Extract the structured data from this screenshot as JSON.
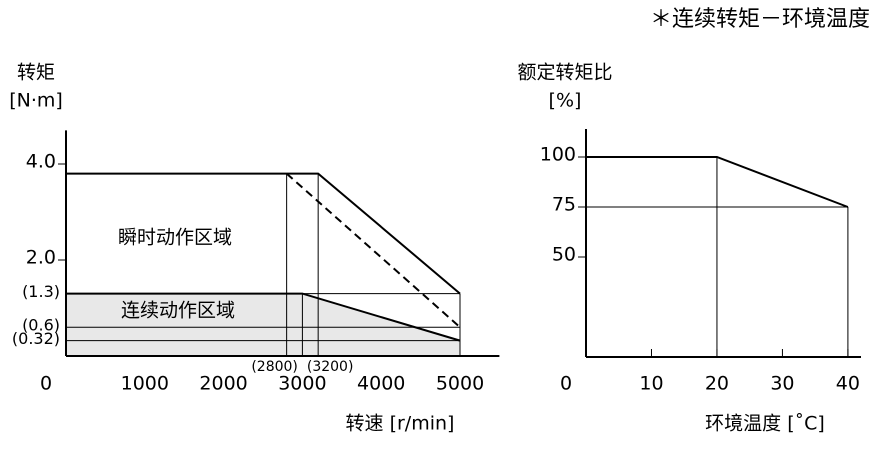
{
  "header": {
    "title": "＊连续转矩－环境温度"
  },
  "chart_data": [
    {
      "type": "line",
      "y_label": [
        "转矩",
        "[N·m]"
      ],
      "x_label": "转速 [r/min]",
      "xlim": [
        0,
        5500
      ],
      "ylim": [
        0,
        4.7
      ],
      "xticks": [
        0,
        1000,
        2000,
        3000,
        4000,
        5000
      ],
      "yticks": [
        {
          "value": 2,
          "label": "2.0"
        },
        {
          "value": 4,
          "label": "4.0"
        }
      ],
      "yrefs": [
        {
          "value": 1.3,
          "label": "(1.3)"
        },
        {
          "value": 0.6,
          "label": "(0.6)"
        },
        {
          "value": 0.32,
          "label": "(0.32)"
        }
      ],
      "xrefs": [
        {
          "value": 2800,
          "label": "(2800)"
        },
        {
          "value": 3200,
          "label": "(3200)"
        }
      ],
      "series": [
        {
          "name": "瞬时动作区域",
          "color": "#000000",
          "x": [
            0,
            3200,
            5000
          ],
          "values": [
            3.8,
            3.8,
            1.3
          ]
        },
        {
          "color": "#000000",
          "dash": true,
          "x": [
            2800,
            5000
          ],
          "values": [
            3.8,
            0.6
          ]
        },
        {
          "name": "连续动作区域",
          "color": "#000000",
          "fill": "#e8e8e8",
          "x": [
            0,
            3000,
            5000
          ],
          "values": [
            1.3,
            1.3,
            0.32
          ]
        }
      ]
    },
    {
      "type": "line",
      "y_label": [
        "额定转矩比",
        "[%]"
      ],
      "x_label": "环境温度 [˚C]",
      "xlim": [
        0,
        42
      ],
      "ylim": [
        0,
        114
      ],
      "xticks": [
        0,
        10,
        20,
        30,
        40
      ],
      "yticks": [
        50,
        75,
        100
      ],
      "yrefs": [
        75
      ],
      "series": [
        {
          "color": "#000000",
          "x": [
            0,
            20,
            40
          ],
          "values": [
            100,
            100,
            75
          ]
        }
      ]
    }
  ]
}
